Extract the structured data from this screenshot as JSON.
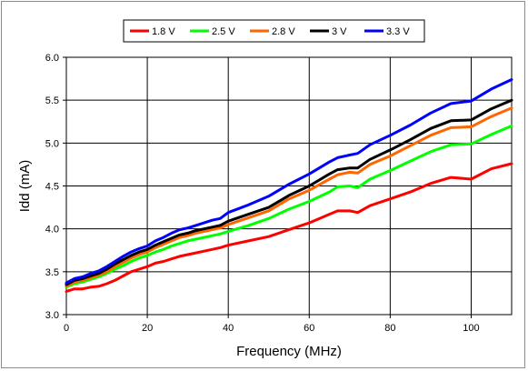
{
  "chart_data": {
    "type": "line",
    "title": "",
    "xlabel": "Frequency (MHz)",
    "ylabel": "Idd (mA)",
    "xlim": [
      0,
      110
    ],
    "ylim": [
      3.0,
      6.0
    ],
    "x_ticks": [
      0,
      20,
      40,
      60,
      80,
      100
    ],
    "x_tick_labels": [
      "0",
      "20",
      "40",
      "60",
      "80",
      "100"
    ],
    "y_ticks": [
      3.0,
      3.5,
      4.0,
      4.5,
      5.0,
      5.5,
      6.0
    ],
    "y_tick_labels": [
      "3.0",
      "3.5",
      "4.0",
      "4.5",
      "5.0",
      "5.5",
      "6.0"
    ],
    "grid": true,
    "legend_position": "top-center",
    "series": [
      {
        "name": "1.8 V",
        "color": "#ff0000",
        "points": [
          [
            0,
            3.27
          ],
          [
            2,
            3.3
          ],
          [
            4,
            3.3
          ],
          [
            6,
            3.32
          ],
          [
            8,
            3.33
          ],
          [
            10,
            3.36
          ],
          [
            12,
            3.4
          ],
          [
            14,
            3.45
          ],
          [
            16,
            3.5
          ],
          [
            18,
            3.53
          ],
          [
            20,
            3.56
          ],
          [
            22,
            3.6
          ],
          [
            24,
            3.62
          ],
          [
            26,
            3.65
          ],
          [
            28,
            3.68
          ],
          [
            30,
            3.7
          ],
          [
            32,
            3.72
          ],
          [
            34,
            3.74
          ],
          [
            36,
            3.76
          ],
          [
            38,
            3.78
          ],
          [
            40,
            3.81
          ],
          [
            45,
            3.86
          ],
          [
            50,
            3.91
          ],
          [
            55,
            3.99
          ],
          [
            60,
            4.07
          ],
          [
            65,
            4.17
          ],
          [
            67,
            4.21
          ],
          [
            70,
            4.21
          ],
          [
            72,
            4.19
          ],
          [
            75,
            4.27
          ],
          [
            80,
            4.35
          ],
          [
            85,
            4.43
          ],
          [
            90,
            4.53
          ],
          [
            95,
            4.6
          ],
          [
            100,
            4.58
          ],
          [
            105,
            4.7
          ],
          [
            110,
            4.76
          ]
        ]
      },
      {
        "name": "2.5 V",
        "color": "#00ff00",
        "points": [
          [
            0,
            3.32
          ],
          [
            2,
            3.36
          ],
          [
            4,
            3.38
          ],
          [
            6,
            3.41
          ],
          [
            8,
            3.44
          ],
          [
            10,
            3.48
          ],
          [
            12,
            3.53
          ],
          [
            14,
            3.57
          ],
          [
            16,
            3.62
          ],
          [
            18,
            3.66
          ],
          [
            20,
            3.69
          ],
          [
            22,
            3.73
          ],
          [
            24,
            3.76
          ],
          [
            26,
            3.8
          ],
          [
            28,
            3.83
          ],
          [
            30,
            3.86
          ],
          [
            32,
            3.88
          ],
          [
            34,
            3.9
          ],
          [
            36,
            3.92
          ],
          [
            38,
            3.94
          ],
          [
            40,
            3.97
          ],
          [
            45,
            4.04
          ],
          [
            50,
            4.12
          ],
          [
            55,
            4.23
          ],
          [
            60,
            4.32
          ],
          [
            65,
            4.43
          ],
          [
            67,
            4.49
          ],
          [
            70,
            4.5
          ],
          [
            72,
            4.48
          ],
          [
            75,
            4.58
          ],
          [
            80,
            4.68
          ],
          [
            85,
            4.79
          ],
          [
            90,
            4.9
          ],
          [
            95,
            4.98
          ],
          [
            100,
            4.99
          ],
          [
            105,
            5.1
          ],
          [
            110,
            5.2
          ]
        ]
      },
      {
        "name": "2.8 V",
        "color": "#ff6600",
        "points": [
          [
            0,
            3.33
          ],
          [
            2,
            3.38
          ],
          [
            4,
            3.4
          ],
          [
            6,
            3.43
          ],
          [
            8,
            3.46
          ],
          [
            10,
            3.5
          ],
          [
            12,
            3.56
          ],
          [
            14,
            3.61
          ],
          [
            16,
            3.66
          ],
          [
            18,
            3.7
          ],
          [
            20,
            3.73
          ],
          [
            22,
            3.78
          ],
          [
            24,
            3.82
          ],
          [
            26,
            3.86
          ],
          [
            28,
            3.9
          ],
          [
            30,
            3.92
          ],
          [
            32,
            3.95
          ],
          [
            34,
            3.97
          ],
          [
            36,
            3.99
          ],
          [
            38,
            4.01
          ],
          [
            40,
            4.05
          ],
          [
            45,
            4.13
          ],
          [
            50,
            4.21
          ],
          [
            55,
            4.35
          ],
          [
            60,
            4.45
          ],
          [
            65,
            4.58
          ],
          [
            67,
            4.63
          ],
          [
            70,
            4.66
          ],
          [
            72,
            4.65
          ],
          [
            75,
            4.75
          ],
          [
            80,
            4.85
          ],
          [
            85,
            4.97
          ],
          [
            90,
            5.09
          ],
          [
            95,
            5.18
          ],
          [
            100,
            5.19
          ],
          [
            105,
            5.31
          ],
          [
            110,
            5.41
          ]
        ]
      },
      {
        "name": "3 V",
        "color": "#000000",
        "points": [
          [
            0,
            3.35
          ],
          [
            2,
            3.4
          ],
          [
            4,
            3.42
          ],
          [
            6,
            3.45
          ],
          [
            8,
            3.48
          ],
          [
            10,
            3.53
          ],
          [
            12,
            3.59
          ],
          [
            14,
            3.64
          ],
          [
            16,
            3.69
          ],
          [
            18,
            3.73
          ],
          [
            20,
            3.76
          ],
          [
            22,
            3.81
          ],
          [
            24,
            3.85
          ],
          [
            26,
            3.89
          ],
          [
            28,
            3.93
          ],
          [
            30,
            3.95
          ],
          [
            32,
            3.98
          ],
          [
            34,
            4.0
          ],
          [
            36,
            4.02
          ],
          [
            38,
            4.04
          ],
          [
            40,
            4.09
          ],
          [
            45,
            4.17
          ],
          [
            50,
            4.25
          ],
          [
            55,
            4.39
          ],
          [
            60,
            4.5
          ],
          [
            65,
            4.64
          ],
          [
            67,
            4.69
          ],
          [
            70,
            4.71
          ],
          [
            72,
            4.71
          ],
          [
            75,
            4.81
          ],
          [
            80,
            4.92
          ],
          [
            85,
            5.04
          ],
          [
            90,
            5.17
          ],
          [
            95,
            5.26
          ],
          [
            100,
            5.27
          ],
          [
            105,
            5.4
          ],
          [
            110,
            5.5
          ]
        ]
      },
      {
        "name": "3.3 V",
        "color": "#0000ff",
        "points": [
          [
            0,
            3.37
          ],
          [
            2,
            3.42
          ],
          [
            4,
            3.44
          ],
          [
            6,
            3.48
          ],
          [
            8,
            3.51
          ],
          [
            10,
            3.56
          ],
          [
            12,
            3.62
          ],
          [
            14,
            3.68
          ],
          [
            16,
            3.73
          ],
          [
            18,
            3.77
          ],
          [
            20,
            3.8
          ],
          [
            22,
            3.86
          ],
          [
            24,
            3.9
          ],
          [
            26,
            3.95
          ],
          [
            28,
            3.99
          ],
          [
            30,
            4.01
          ],
          [
            32,
            4.04
          ],
          [
            34,
            4.07
          ],
          [
            36,
            4.1
          ],
          [
            38,
            4.12
          ],
          [
            40,
            4.19
          ],
          [
            45,
            4.28
          ],
          [
            50,
            4.38
          ],
          [
            55,
            4.52
          ],
          [
            60,
            4.64
          ],
          [
            65,
            4.78
          ],
          [
            67,
            4.83
          ],
          [
            70,
            4.86
          ],
          [
            72,
            4.88
          ],
          [
            75,
            4.98
          ],
          [
            80,
            5.09
          ],
          [
            85,
            5.21
          ],
          [
            90,
            5.35
          ],
          [
            95,
            5.46
          ],
          [
            100,
            5.49
          ],
          [
            105,
            5.63
          ],
          [
            110,
            5.74
          ]
        ]
      }
    ]
  }
}
